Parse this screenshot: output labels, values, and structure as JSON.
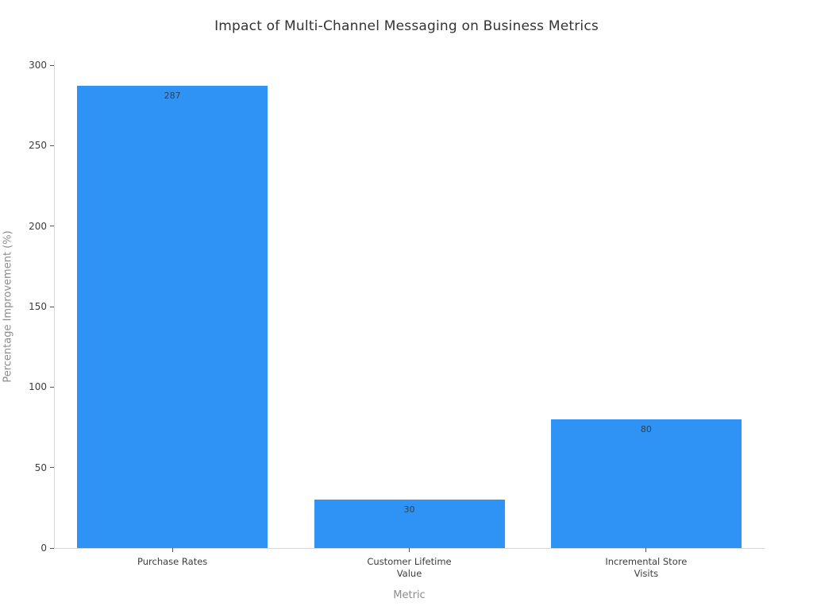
{
  "chart_data": {
    "type": "bar",
    "title": "Impact of Multi-Channel Messaging on Business Metrics",
    "xlabel": "Metric",
    "ylabel": "Percentage Improvement (%)",
    "categories": [
      "Purchase Rates",
      "Customer Lifetime\nValue",
      "Incremental Store\nVisits"
    ],
    "values": [
      287,
      30,
      80
    ],
    "bar_labels": [
      "287",
      "30",
      "80"
    ],
    "ylim": [
      0,
      300
    ],
    "yticks": [
      0,
      50,
      100,
      150,
      200,
      250,
      300
    ],
    "grid": false,
    "legend": "none",
    "bar_color": "#2F93F5",
    "colors": {
      "background": "#FFFFFF",
      "axis_line": "#D8D8D8",
      "tick_mark": "#555555",
      "tick_text": "#3D3D3D",
      "title_text": "#333333",
      "axis_title_text": "#8C8C8C",
      "bar_label_text": "#344049"
    }
  }
}
